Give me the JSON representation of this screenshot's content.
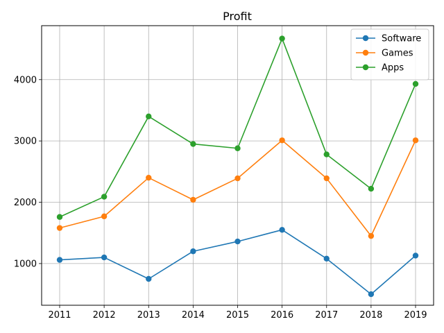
{
  "chart_data": {
    "type": "line",
    "title": "Profit",
    "xlabel": "",
    "ylabel": "",
    "x": [
      "2011",
      "2012",
      "2013",
      "2014",
      "2015",
      "2016",
      "2017",
      "2018",
      "2019"
    ],
    "yticks": [
      1000,
      2000,
      3000,
      4000
    ],
    "ylim": [
      320,
      4880
    ],
    "grid": true,
    "legend_position": "top-right",
    "series": [
      {
        "name": "Software",
        "color": "#1f77b4",
        "values": [
          1060,
          1100,
          750,
          1200,
          1360,
          1550,
          1080,
          500,
          1130
        ]
      },
      {
        "name": "Games",
        "color": "#ff7f0e",
        "values": [
          1580,
          1770,
          2400,
          2040,
          2390,
          3010,
          2390,
          1450,
          3010
        ]
      },
      {
        "name": "Apps",
        "color": "#2ca02c",
        "values": [
          1760,
          2090,
          3400,
          2950,
          2880,
          4670,
          2780,
          2220,
          3930
        ]
      }
    ]
  }
}
